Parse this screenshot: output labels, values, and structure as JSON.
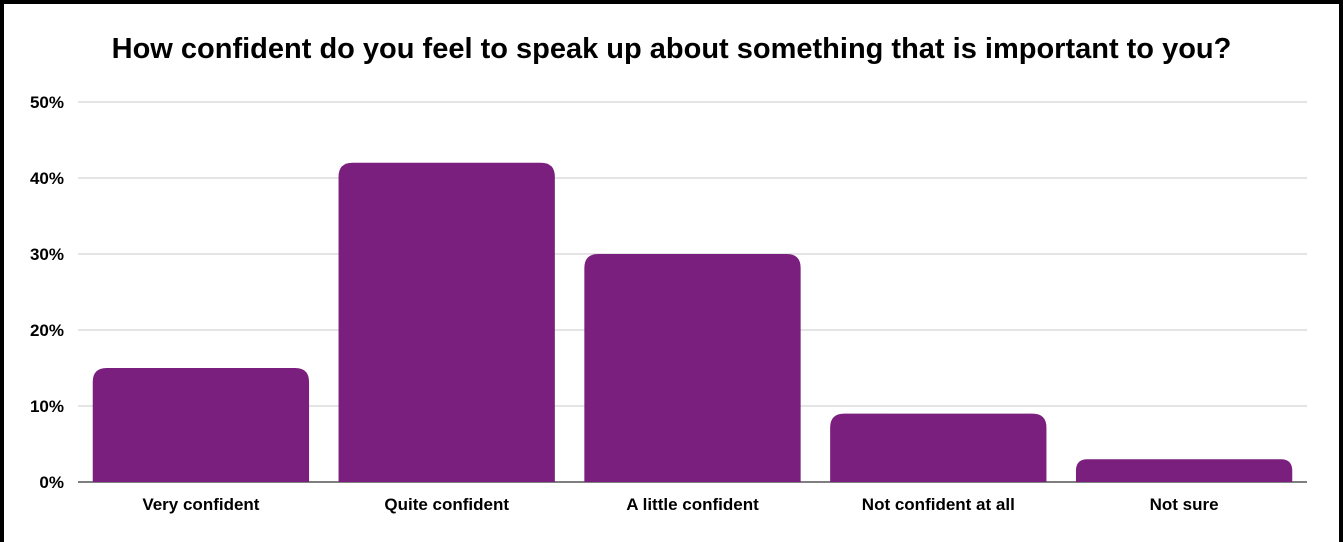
{
  "chart_data": {
    "type": "bar",
    "title": "How confident do you feel to speak up about something that is important to you?",
    "categories": [
      "Very confident",
      "Quite confident",
      "A little confident",
      "Not confident at all",
      "Not sure"
    ],
    "values": [
      15,
      42,
      30,
      9,
      3
    ],
    "unit": "%",
    "yticks": [
      "0%",
      "10%",
      "20%",
      "30%",
      "40%",
      "50%"
    ],
    "ylim": [
      0,
      50
    ],
    "grid": true,
    "legend": "none",
    "bar_color": "#7a1f7d"
  }
}
